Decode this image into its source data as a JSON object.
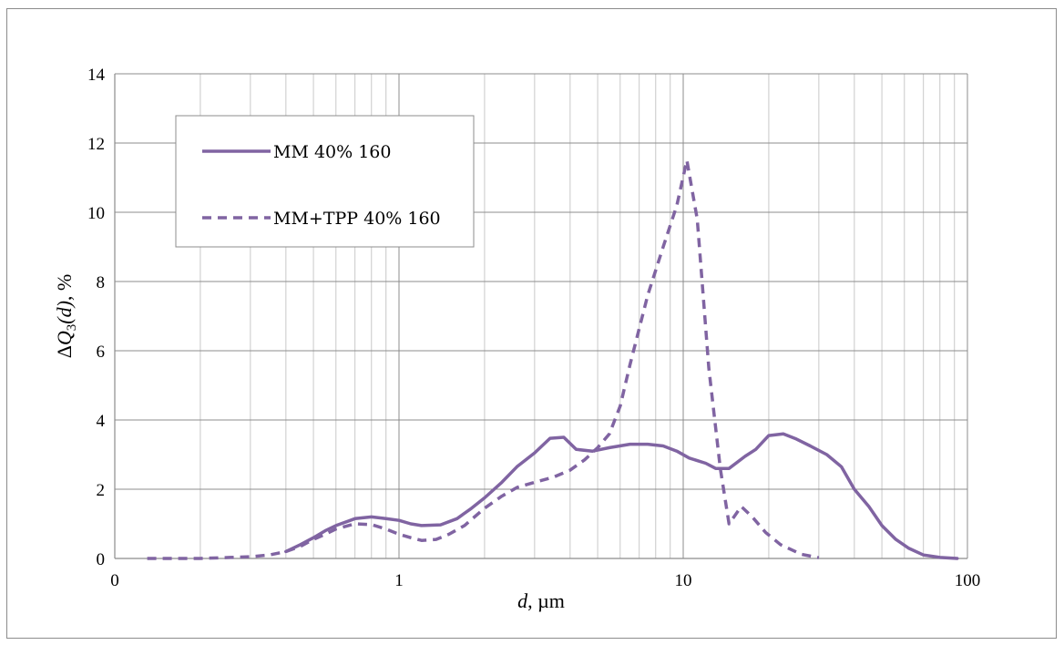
{
  "chart_data": {
    "type": "line",
    "title": "",
    "xlabel": {
      "var": "d",
      "unit": ", µm"
    },
    "ylabel": {
      "delta": "Δ",
      "var": "Q",
      "sub": "3",
      "arg": "(d)",
      "unit": ", %"
    },
    "x_scale": "log",
    "xlim": [
      0.1,
      100
    ],
    "ylim": [
      0,
      14
    ],
    "x_ticks": [
      {
        "value": 0.1,
        "label": "0"
      },
      {
        "value": 1,
        "label": "1"
      },
      {
        "value": 10,
        "label": "10"
      },
      {
        "value": 100,
        "label": "100"
      }
    ],
    "y_ticks": [
      0,
      2,
      4,
      6,
      8,
      10,
      12,
      14
    ],
    "grid": {
      "major": true,
      "minor_x": true
    },
    "legend": {
      "position": "top-left"
    },
    "series": [
      {
        "name": "MM 40% 160",
        "color": "#8064a2",
        "style": "solid",
        "points": [
          [
            0.4,
            0.2
          ],
          [
            0.45,
            0.4
          ],
          [
            0.5,
            0.6
          ],
          [
            0.55,
            0.8
          ],
          [
            0.6,
            0.95
          ],
          [
            0.7,
            1.15
          ],
          [
            0.8,
            1.2
          ],
          [
            0.9,
            1.15
          ],
          [
            1.0,
            1.1
          ],
          [
            1.1,
            1.0
          ],
          [
            1.2,
            0.95
          ],
          [
            1.4,
            0.97
          ],
          [
            1.6,
            1.15
          ],
          [
            1.8,
            1.45
          ],
          [
            2.0,
            1.75
          ],
          [
            2.3,
            2.2
          ],
          [
            2.6,
            2.65
          ],
          [
            3.0,
            3.05
          ],
          [
            3.4,
            3.47
          ],
          [
            3.8,
            3.5
          ],
          [
            4.2,
            3.15
          ],
          [
            4.8,
            3.1
          ],
          [
            5.5,
            3.2
          ],
          [
            6.5,
            3.3
          ],
          [
            7.5,
            3.3
          ],
          [
            8.5,
            3.25
          ],
          [
            9.5,
            3.1
          ],
          [
            10.5,
            2.9
          ],
          [
            12.0,
            2.75
          ],
          [
            13.0,
            2.6
          ],
          [
            14.5,
            2.6
          ],
          [
            16.5,
            2.95
          ],
          [
            18.0,
            3.15
          ],
          [
            20.0,
            3.55
          ],
          [
            22.5,
            3.6
          ],
          [
            25.0,
            3.45
          ],
          [
            28.0,
            3.25
          ],
          [
            32.0,
            3.0
          ],
          [
            36.0,
            2.65
          ],
          [
            40.0,
            2.0
          ],
          [
            45.0,
            1.5
          ],
          [
            50.0,
            0.95
          ],
          [
            56.0,
            0.55
          ],
          [
            62.0,
            0.3
          ],
          [
            70.0,
            0.1
          ],
          [
            80.0,
            0.03
          ],
          [
            92.0,
            0.0
          ]
        ]
      },
      {
        "name": "MM+TPP 40% 160",
        "color": "#8064a2",
        "style": "dashed",
        "points": [
          [
            0.13,
            0.0
          ],
          [
            0.2,
            0.0
          ],
          [
            0.3,
            0.05
          ],
          [
            0.35,
            0.1
          ],
          [
            0.4,
            0.2
          ],
          [
            0.45,
            0.35
          ],
          [
            0.5,
            0.55
          ],
          [
            0.55,
            0.7
          ],
          [
            0.6,
            0.85
          ],
          [
            0.7,
            1.0
          ],
          [
            0.8,
            0.98
          ],
          [
            0.9,
            0.85
          ],
          [
            1.0,
            0.7
          ],
          [
            1.1,
            0.6
          ],
          [
            1.2,
            0.52
          ],
          [
            1.35,
            0.55
          ],
          [
            1.5,
            0.7
          ],
          [
            1.7,
            0.95
          ],
          [
            2.0,
            1.45
          ],
          [
            2.3,
            1.8
          ],
          [
            2.6,
            2.05
          ],
          [
            3.0,
            2.2
          ],
          [
            3.5,
            2.35
          ],
          [
            4.0,
            2.55
          ],
          [
            4.5,
            2.85
          ],
          [
            5.0,
            3.2
          ],
          [
            5.5,
            3.6
          ],
          [
            6.0,
            4.4
          ],
          [
            6.5,
            5.6
          ],
          [
            7.5,
            7.6
          ],
          [
            8.5,
            9.0
          ],
          [
            9.5,
            10.2
          ],
          [
            10.3,
            11.5
          ],
          [
            11.2,
            9.8
          ],
          [
            12.3,
            5.5
          ],
          [
            13.5,
            2.6
          ],
          [
            14.5,
            1.0
          ],
          [
            16.0,
            1.5
          ],
          [
            17.5,
            1.2
          ],
          [
            19.5,
            0.75
          ],
          [
            22.0,
            0.4
          ],
          [
            26.0,
            0.12
          ],
          [
            30.0,
            0.02
          ]
        ]
      }
    ]
  }
}
